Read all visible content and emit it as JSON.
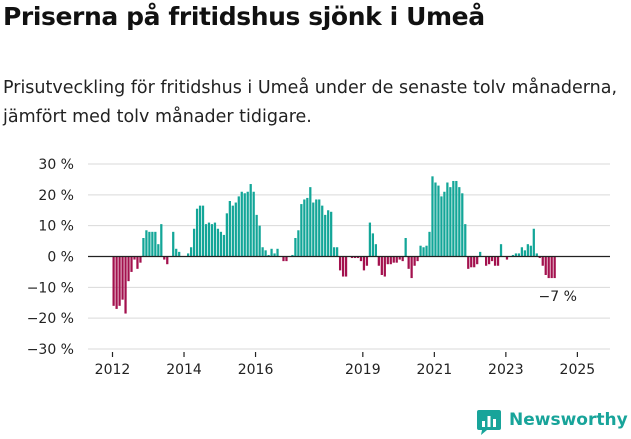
{
  "header": {
    "title": "Priserna på fritidshus sjönk i Umeå",
    "subtitle": "Prisutveckling för fritidshus i Umeå under de senaste tolv månaderna, jämfört med tolv månader tidigare."
  },
  "brand": {
    "name": "Newsworthy",
    "icon": "newsworthy-bar-chart-icon",
    "color": "#18a49a"
  },
  "colors": {
    "positive": "#13a698",
    "negative": "#a3114e",
    "grid": "#d9d9d9",
    "axis": "#222222"
  },
  "chart_data": {
    "type": "bar",
    "title": "Priserna på fritidshus sjönk i Umeå",
    "xlabel": "",
    "ylabel": "",
    "ylim": [
      -30,
      30
    ],
    "y_ticks": [
      30,
      20,
      10,
      0,
      -10,
      -20,
      -30
    ],
    "y_tick_labels": [
      "30 %",
      "20 %",
      "10 %",
      "0 %",
      "−10 %",
      "−20 %",
      "−30 %"
    ],
    "x_tick_labels": [
      "2012",
      "2014",
      "2016",
      "2019",
      "2021",
      "2023",
      "2025"
    ],
    "x_tick_years": [
      2012,
      2014,
      2016,
      2019,
      2021,
      2023,
      2025
    ],
    "grid": true,
    "annotation": {
      "text": "−7 %",
      "value": -7
    },
    "series": [
      {
        "start": "2012-01",
        "values": [
          -16,
          -17,
          -16,
          -14,
          -18.5,
          -8,
          -5,
          -1,
          -4,
          -2,
          6,
          8.5,
          8,
          8,
          8,
          4,
          10.5,
          -1,
          -2.5,
          0,
          8,
          2.5,
          1.5,
          0,
          0,
          1,
          3,
          9,
          15.5,
          16.5,
          16.5,
          10.5,
          11,
          10.5,
          11,
          9,
          8,
          7,
          14,
          18,
          16.5,
          17.5,
          19.5,
          21,
          20.5,
          21,
          23.5,
          21,
          13.5,
          10,
          3,
          2,
          0.5,
          2.5,
          1,
          2.5,
          0,
          -1.5,
          -1.5,
          0,
          0.5,
          6,
          8.5,
          17,
          18.5,
          19,
          22.5,
          17.5,
          18.5,
          18.5,
          16.5,
          13.5,
          15,
          14.5,
          3,
          3,
          -4.5,
          -6.5,
          -6.5,
          0,
          -0.5,
          -0.5,
          -0.5,
          -1.5,
          -4.5,
          -3,
          11,
          7.5,
          4,
          -3,
          -6,
          -6.5,
          -2.5,
          -2.5,
          -2,
          -2,
          -1,
          -1.5,
          6,
          -4,
          -7,
          -3,
          -1.5,
          3.5,
          3,
          3.5,
          8,
          26,
          24,
          23,
          19.5,
          21,
          24,
          22.5,
          24.5,
          24.5,
          22.5,
          20.5,
          10.5,
          -4,
          -3.5,
          -3.5,
          -2.5,
          1.5,
          0,
          -3,
          -2.5,
          -1.5,
          -3,
          -3,
          4,
          0,
          -1,
          0,
          0.5,
          1,
          1,
          3,
          2,
          4,
          3.5,
          9,
          1,
          -0.5,
          -3,
          -6,
          -7,
          -7,
          -7
        ]
      }
    ]
  }
}
